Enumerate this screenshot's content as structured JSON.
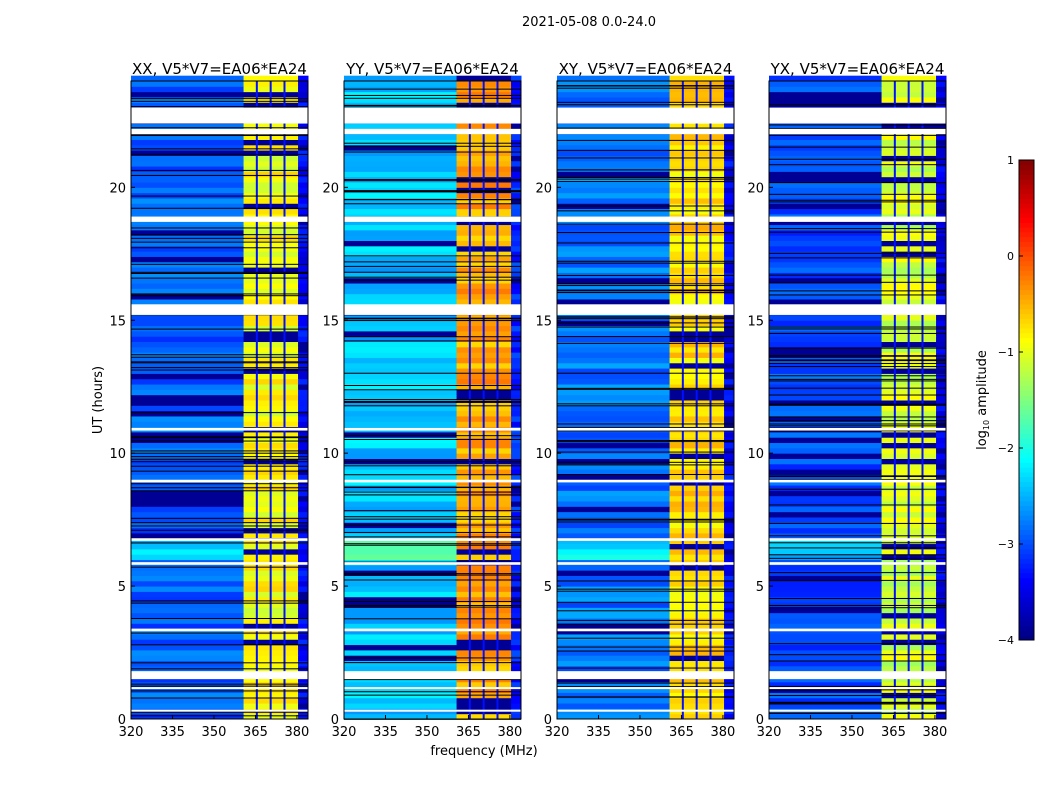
{
  "chart_data": {
    "type": "heatmap",
    "title": "2021-05-08 0.0-24.0",
    "xlabel": "frequency (MHz)",
    "ylabel": "UT (hours)",
    "xlim": [
      320,
      384
    ],
    "ylim": [
      0,
      24
    ],
    "xticks": [
      "320",
      "335",
      "350",
      "365",
      "380"
    ],
    "yticks": [
      "0",
      "5",
      "10",
      "15",
      "20"
    ],
    "colorbar": {
      "label": "log10 amplitude",
      "label_main": "log",
      "label_sub": "10",
      "label_rest": " amplitude",
      "range": [
        -4,
        1
      ],
      "colormap": "jet",
      "ticks": [
        "1",
        "0",
        "−1",
        "−2",
        "−3",
        "−4"
      ],
      "tick_values": [
        1,
        0,
        -1,
        -2,
        -3,
        -4
      ]
    },
    "bands_mhz": [
      [
        320,
        360.7
      ],
      [
        360.7,
        380.4
      ],
      [
        380.4,
        384
      ]
    ],
    "dark_channels_mhz": [
      365.5,
      370.5,
      375.5
    ],
    "flagged_hours": [
      [
        22.4,
        23.0
      ],
      [
        22.0,
        22.2
      ],
      [
        18.7,
        18.9
      ],
      [
        15.2,
        15.6
      ],
      [
        10.85,
        10.95
      ],
      [
        8.9,
        9.0
      ],
      [
        6.7,
        6.8
      ],
      [
        5.8,
        5.9
      ],
      [
        3.3,
        3.4
      ],
      [
        1.5,
        1.8
      ],
      [
        1.15,
        1.2
      ],
      [
        0.3,
        0.35
      ]
    ],
    "panels": [
      {
        "title": "XX, V5*V7=EA06*EA24",
        "levels": [
          -2.9,
          -0.9,
          -3.4
        ]
      },
      {
        "title": "YY, V5*V7=EA06*EA24",
        "levels": [
          -2.4,
          -0.45,
          -3.2
        ]
      },
      {
        "title": "XY, V5*V7=EA06*EA24",
        "levels": [
          -2.8,
          -0.7,
          -3.4
        ]
      },
      {
        "title": "YX, V5*V7=EA06*EA24",
        "levels": [
          -3.0,
          -1.1,
          -3.5
        ]
      }
    ]
  }
}
